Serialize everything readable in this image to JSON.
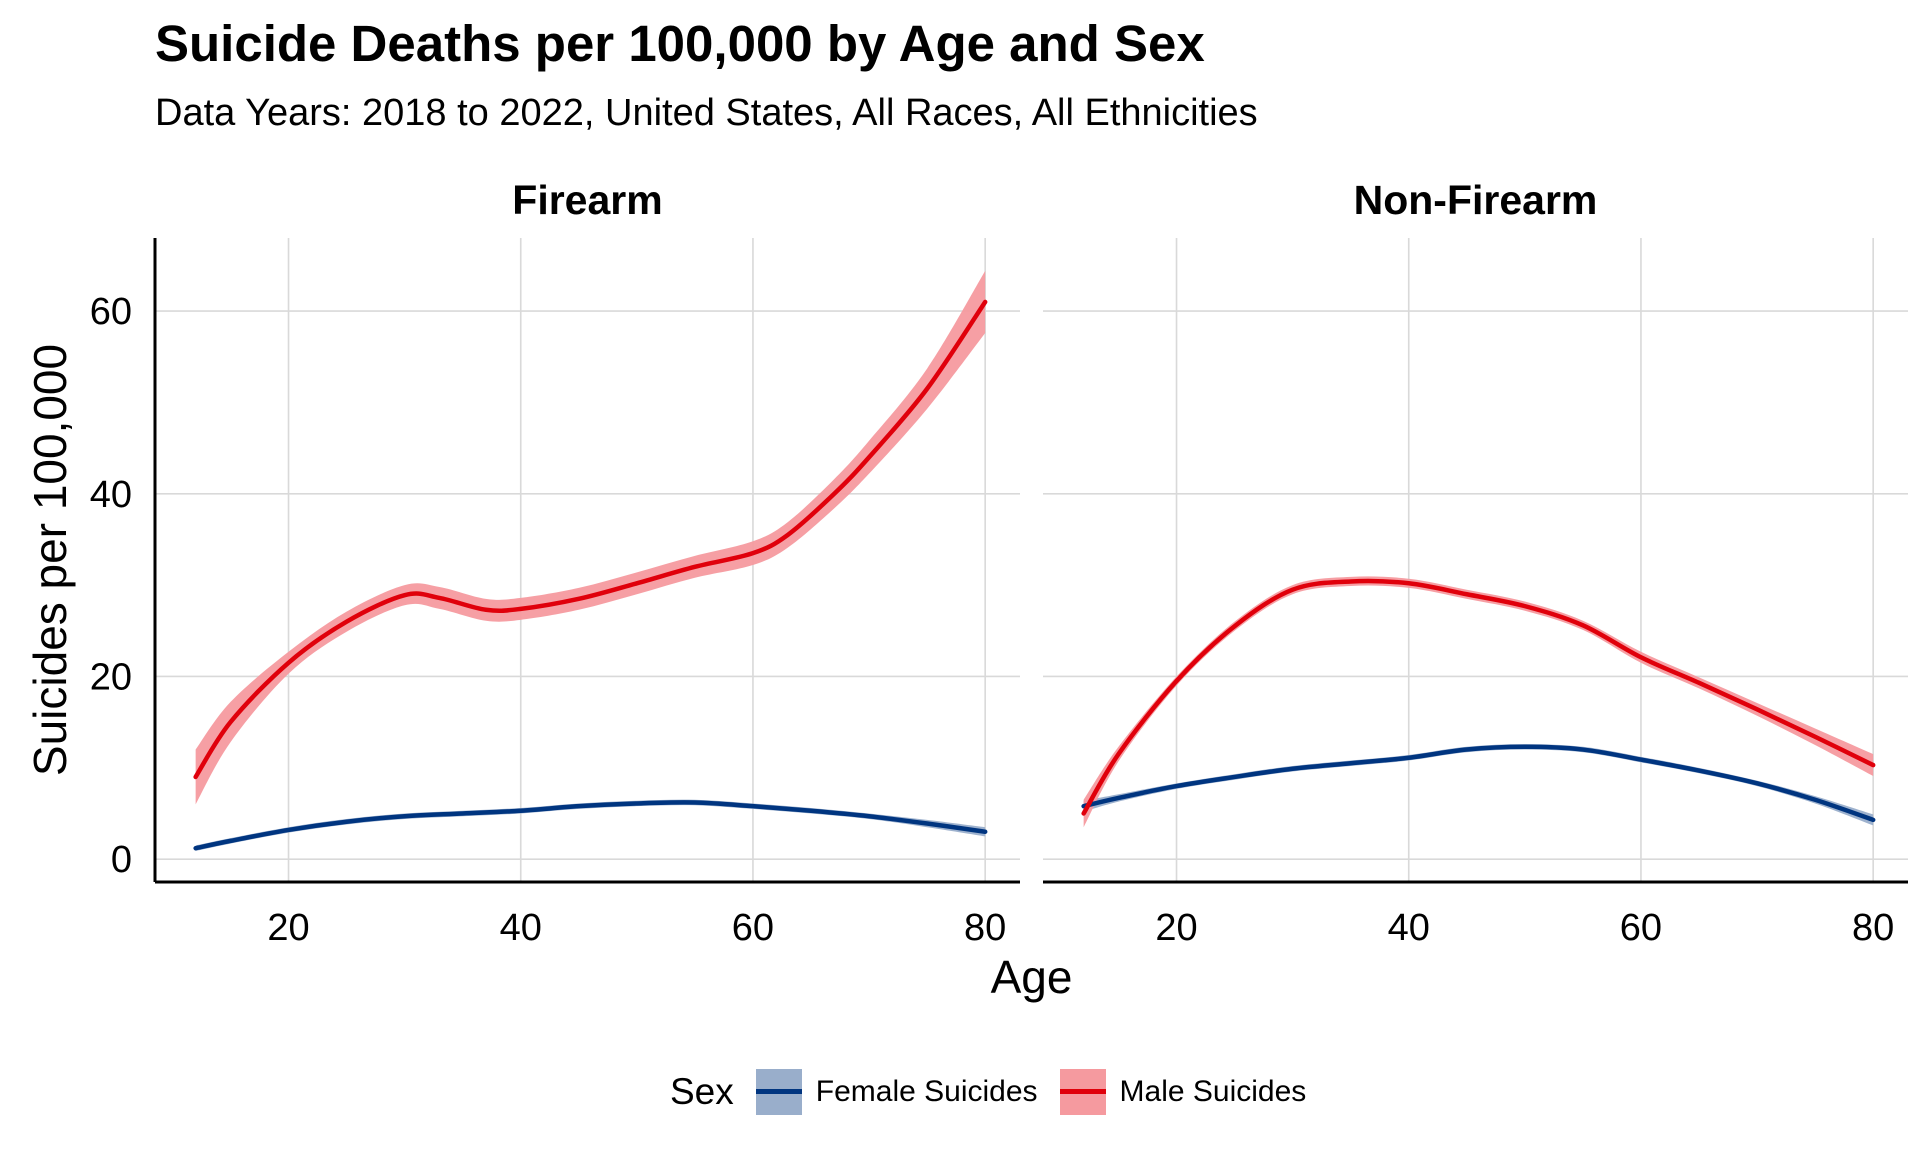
{
  "title": "Suicide Deaths per 100,000 by Age and Sex",
  "subtitle": "Data Years: 2018 to 2022, United States, All Races, All Ethnicities",
  "legend": {
    "title": "Sex",
    "items": [
      {
        "label": "Female Suicides",
        "line_color": "#003580",
        "band_color": "#99aecb"
      },
      {
        "label": "Male Suicides",
        "line_color": "#e0000b",
        "band_color": "#f59a9f"
      }
    ]
  },
  "chart_data": {
    "type": "line",
    "title": "Suicide Deaths per 100,000 by Age and Sex",
    "subtitle": "Data Years: 2018 to 2022, United States, All Races, All Ethnicities",
    "xlabel": "Age",
    "ylabel": "Suicides per 100,000",
    "xlim": [
      8.5,
      83
    ],
    "ylim": [
      -2.5,
      68
    ],
    "xticks": [
      20,
      40,
      60,
      80
    ],
    "yticks": [
      0,
      20,
      40,
      60
    ],
    "grid": true,
    "legend_position": "bottom",
    "facets": [
      {
        "label": "Firearm",
        "series": [
          {
            "name": "Female Suicides",
            "x": [
              12,
              15,
              20,
              25,
              30,
              35,
              40,
              45,
              50,
              55,
              60,
              65,
              70,
              75,
              80
            ],
            "y": [
              1.2,
              2.0,
              3.2,
              4.1,
              4.7,
              5.0,
              5.3,
              5.8,
              6.1,
              6.2,
              5.8,
              5.3,
              4.7,
              3.9,
              3.0
            ],
            "y_low": [
              0.9,
              1.7,
              2.9,
              3.8,
              4.4,
              4.7,
              5.0,
              5.5,
              5.8,
              5.9,
              5.5,
              5.0,
              4.4,
              3.5,
              2.5
            ],
            "y_high": [
              1.5,
              2.3,
              3.5,
              4.4,
              5.0,
              5.3,
              5.6,
              6.1,
              6.4,
              6.5,
              6.1,
              5.6,
              5.0,
              4.3,
              3.5
            ]
          },
          {
            "name": "Male Suicides",
            "x": [
              12,
              15,
              20,
              25,
              30,
              33,
              37,
              40,
              45,
              50,
              55,
              60,
              63,
              67,
              70,
              75,
              80
            ],
            "y": [
              9.0,
              15.0,
              21.5,
              26.0,
              28.9,
              28.6,
              27.3,
              27.4,
              28.5,
              30.2,
              32.0,
              33.5,
              35.5,
              40.0,
              44.0,
              51.5,
              61.0
            ],
            "y_low": [
              6.0,
              12.8,
              20.3,
              24.9,
              27.8,
              27.4,
              26.1,
              26.2,
              27.3,
              29.0,
              30.8,
              32.2,
              34.1,
              38.4,
              42.2,
              49.3,
              57.6
            ],
            "y_high": [
              12.0,
              17.2,
              22.7,
              27.1,
              30.0,
              29.8,
              28.5,
              28.6,
              29.7,
              31.4,
              33.2,
              34.8,
              36.9,
              41.6,
              45.8,
              53.7,
              64.4
            ]
          }
        ]
      },
      {
        "label": "Non-Firearm",
        "series": [
          {
            "name": "Female Suicides",
            "x": [
              12,
              15,
              20,
              25,
              30,
              35,
              40,
              45,
              50,
              55,
              60,
              65,
              70,
              75,
              80
            ],
            "y": [
              5.8,
              6.7,
              8.0,
              9.0,
              9.9,
              10.5,
              11.1,
              12.0,
              12.3,
              12.0,
              10.9,
              9.7,
              8.3,
              6.5,
              4.3
            ],
            "y_low": [
              5.2,
              6.3,
              7.7,
              8.7,
              9.6,
              10.2,
              10.8,
              11.7,
              12.0,
              11.7,
              10.6,
              9.4,
              8.0,
              6.1,
              3.7
            ],
            "y_high": [
              6.4,
              7.1,
              8.3,
              9.3,
              10.2,
              10.8,
              11.4,
              12.3,
              12.6,
              12.3,
              11.2,
              10.0,
              8.6,
              6.9,
              4.9
            ]
          },
          {
            "name": "Male Suicides",
            "x": [
              12,
              15,
              20,
              25,
              30,
              35,
              40,
              45,
              50,
              55,
              60,
              65,
              70,
              75,
              80
            ],
            "y": [
              5.0,
              11.5,
              19.5,
              25.5,
              29.5,
              30.4,
              30.2,
              29.0,
              27.7,
              25.6,
              22.1,
              19.3,
              16.4,
              13.4,
              10.3
            ],
            "y_low": [
              3.5,
              10.7,
              19.0,
              25.0,
              29.0,
              29.9,
              29.7,
              28.5,
              27.2,
              25.1,
              21.5,
              18.7,
              15.7,
              12.5,
              9.1
            ],
            "y_high": [
              6.5,
              12.3,
              20.0,
              26.0,
              30.0,
              30.9,
              30.7,
              29.5,
              28.2,
              26.1,
              22.7,
              19.9,
              17.1,
              14.3,
              11.5
            ]
          }
        ]
      }
    ]
  }
}
